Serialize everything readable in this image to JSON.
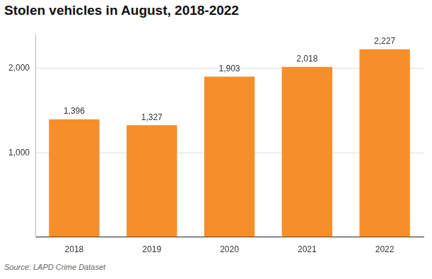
{
  "chart_data": {
    "type": "bar",
    "title": "Stolen vehicles in August, 2018-2022",
    "source": "Source: LAPD Crime Dataset",
    "categories": [
      "2018",
      "2019",
      "2020",
      "2021",
      "2022"
    ],
    "values": [
      1396,
      1327,
      1903,
      2018,
      2227
    ],
    "value_labels": [
      "1,396",
      "1,327",
      "1,903",
      "2,018",
      "2,227"
    ],
    "data_labels": true,
    "color": "#f68e2a",
    "ylim": [
      0,
      2400
    ],
    "yticks": [
      {
        "value": 1000,
        "label": "1,000"
      },
      {
        "value": 2000,
        "label": "2,000"
      }
    ],
    "grid": true
  }
}
